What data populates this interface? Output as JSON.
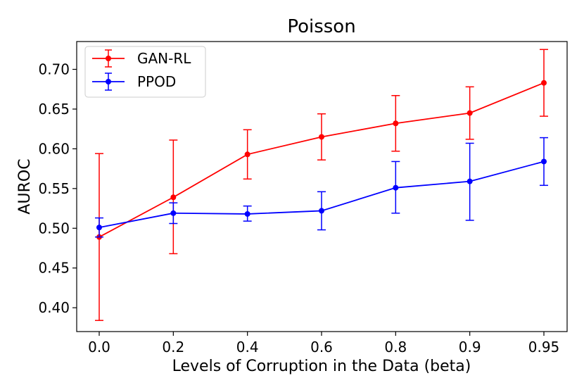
{
  "chart_data": {
    "type": "line",
    "title": "Poisson",
    "xlabel": "Levels of Corruption in the Data (beta)",
    "ylabel": "AUROC",
    "categories": [
      "0.0",
      "0.2",
      "0.4",
      "0.6",
      "0.8",
      "0.9",
      "0.95"
    ],
    "ylim": [
      0.37,
      0.735
    ],
    "yticks": [
      "0.40",
      "0.45",
      "0.50",
      "0.55",
      "0.60",
      "0.65",
      "0.70"
    ],
    "grid": false,
    "legend_position": "top-left",
    "series": [
      {
        "name": "GAN-RL",
        "color": "#ff0000",
        "values": [
          0.489,
          0.539,
          0.593,
          0.615,
          0.632,
          0.645,
          0.683
        ],
        "err_low": [
          0.384,
          0.468,
          0.562,
          0.586,
          0.597,
          0.612,
          0.641
        ],
        "err_high": [
          0.594,
          0.611,
          0.624,
          0.644,
          0.667,
          0.678,
          0.725
        ]
      },
      {
        "name": "PPOD",
        "color": "#0000ff",
        "values": [
          0.501,
          0.519,
          0.518,
          0.522,
          0.551,
          0.559,
          0.584
        ],
        "err_low": [
          0.489,
          0.506,
          0.509,
          0.498,
          0.519,
          0.51,
          0.554
        ],
        "err_high": [
          0.513,
          0.532,
          0.528,
          0.546,
          0.584,
          0.607,
          0.614
        ]
      }
    ]
  }
}
